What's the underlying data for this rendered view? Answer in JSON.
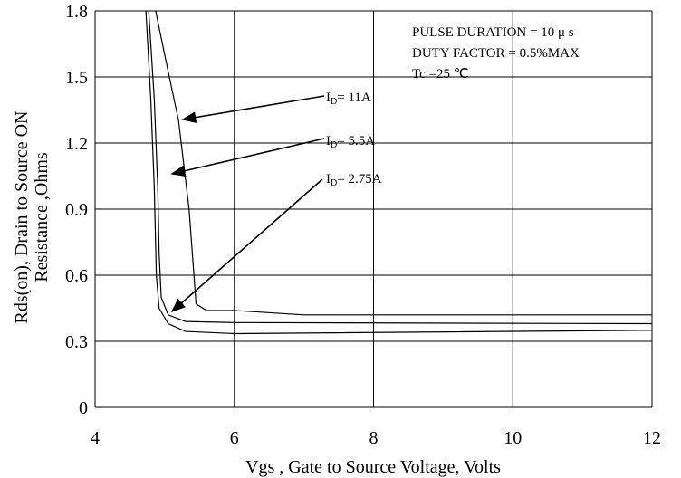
{
  "chart_data": {
    "type": "line",
    "x_label": "Vgs , Gate to Source Voltage,  Volts",
    "y_label": [
      "Rds(on), Drain to Source ON",
      "Resistance ,Ohms"
    ],
    "notes": [
      "PULSE   DURATION = 10 μ s",
      "DUTY   FACTOR = 0.5%MAX",
      "Tc =25 ℃"
    ],
    "xlim": [
      4,
      12
    ],
    "xticks": [
      4,
      6,
      8,
      10,
      12
    ],
    "ylim": [
      0,
      1.8
    ],
    "yticks": [
      0,
      0.3,
      0.6,
      0.9,
      1.2,
      1.5,
      1.8
    ],
    "grid": true,
    "series": [
      {
        "name": {
          "symbol": "I",
          "sub": "D",
          "rest": "= 11A"
        },
        "color": "#000000",
        "x": [
          4.87,
          5.0,
          5.2,
          5.35,
          5.42,
          5.45,
          5.6,
          6,
          7,
          12
        ],
        "values": [
          1.8,
          1.6,
          1.3,
          0.9,
          0.6,
          0.47,
          0.44,
          0.44,
          0.42,
          0.42
        ]
      },
      {
        "name": {
          "symbol": "I",
          "sub": "D",
          "rest": "= 5.5A"
        },
        "color": "#000000",
        "x": [
          4.77,
          4.85,
          4.9,
          4.92,
          4.95,
          5.05,
          5.3,
          6,
          12
        ],
        "values": [
          1.8,
          1.4,
          1.0,
          0.7,
          0.5,
          0.42,
          0.39,
          0.385,
          0.38
        ]
      },
      {
        "name": {
          "symbol": "I",
          "sub": "D",
          "rest": "= 2.75A"
        },
        "color": "#000000",
        "x": [
          4.73,
          4.8,
          4.85,
          4.88,
          4.92,
          5.05,
          5.3,
          6,
          12
        ],
        "values": [
          1.8,
          1.4,
          1.0,
          0.6,
          0.45,
          0.38,
          0.345,
          0.335,
          0.35
        ]
      }
    ]
  }
}
